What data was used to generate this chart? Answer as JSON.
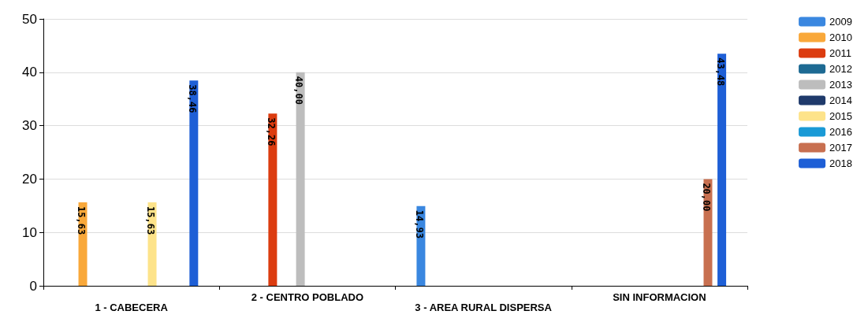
{
  "chart_data": {
    "type": "bar",
    "categories": [
      "1 - CABECERA",
      "2 - CENTRO POBLADO",
      "3 - AREA RURAL DISPERSA",
      "SIN INFORMACION"
    ],
    "series": [
      {
        "name": "2009",
        "color": "#3a87e0",
        "values": [
          null,
          null,
          14.93,
          null
        ],
        "value_labels": [
          null,
          null,
          "14,93",
          null
        ]
      },
      {
        "name": "2010",
        "color": "#f9a83a",
        "values": [
          15.63,
          null,
          null,
          null
        ],
        "value_labels": [
          "15,63",
          null,
          null,
          null
        ]
      },
      {
        "name": "2011",
        "color": "#dc3c10",
        "values": [
          null,
          32.26,
          null,
          null
        ],
        "value_labels": [
          null,
          "32,26",
          null,
          null
        ]
      },
      {
        "name": "2012",
        "color": "#1d6a93",
        "values": [
          null,
          null,
          null,
          null
        ]
      },
      {
        "name": "2013",
        "color": "#bdbdbd",
        "values": [
          null,
          40.0,
          null,
          null
        ],
        "value_labels": [
          null,
          "40,00",
          null,
          null
        ]
      },
      {
        "name": "2014",
        "color": "#1f3a6b",
        "values": [
          null,
          null,
          null,
          null
        ]
      },
      {
        "name": "2015",
        "color": "#fde38a",
        "values": [
          15.63,
          null,
          null,
          null
        ],
        "value_labels": [
          "15,63",
          null,
          null,
          null
        ]
      },
      {
        "name": "2016",
        "color": "#1a9ad6",
        "values": [
          null,
          null,
          null,
          null
        ]
      },
      {
        "name": "2017",
        "color": "#c87050",
        "values": [
          null,
          null,
          null,
          20.0
        ],
        "value_labels": [
          null,
          null,
          null,
          "20,00"
        ]
      },
      {
        "name": "2018",
        "color": "#1e5fd6",
        "values": [
          38.46,
          null,
          null,
          43.48
        ],
        "value_labels": [
          "38,46",
          null,
          null,
          "43,48"
        ]
      }
    ],
    "ylim": [
      0,
      50
    ],
    "yticks": [
      0,
      10,
      20,
      30,
      40,
      50
    ],
    "grid": "y",
    "legend": "top right"
  }
}
